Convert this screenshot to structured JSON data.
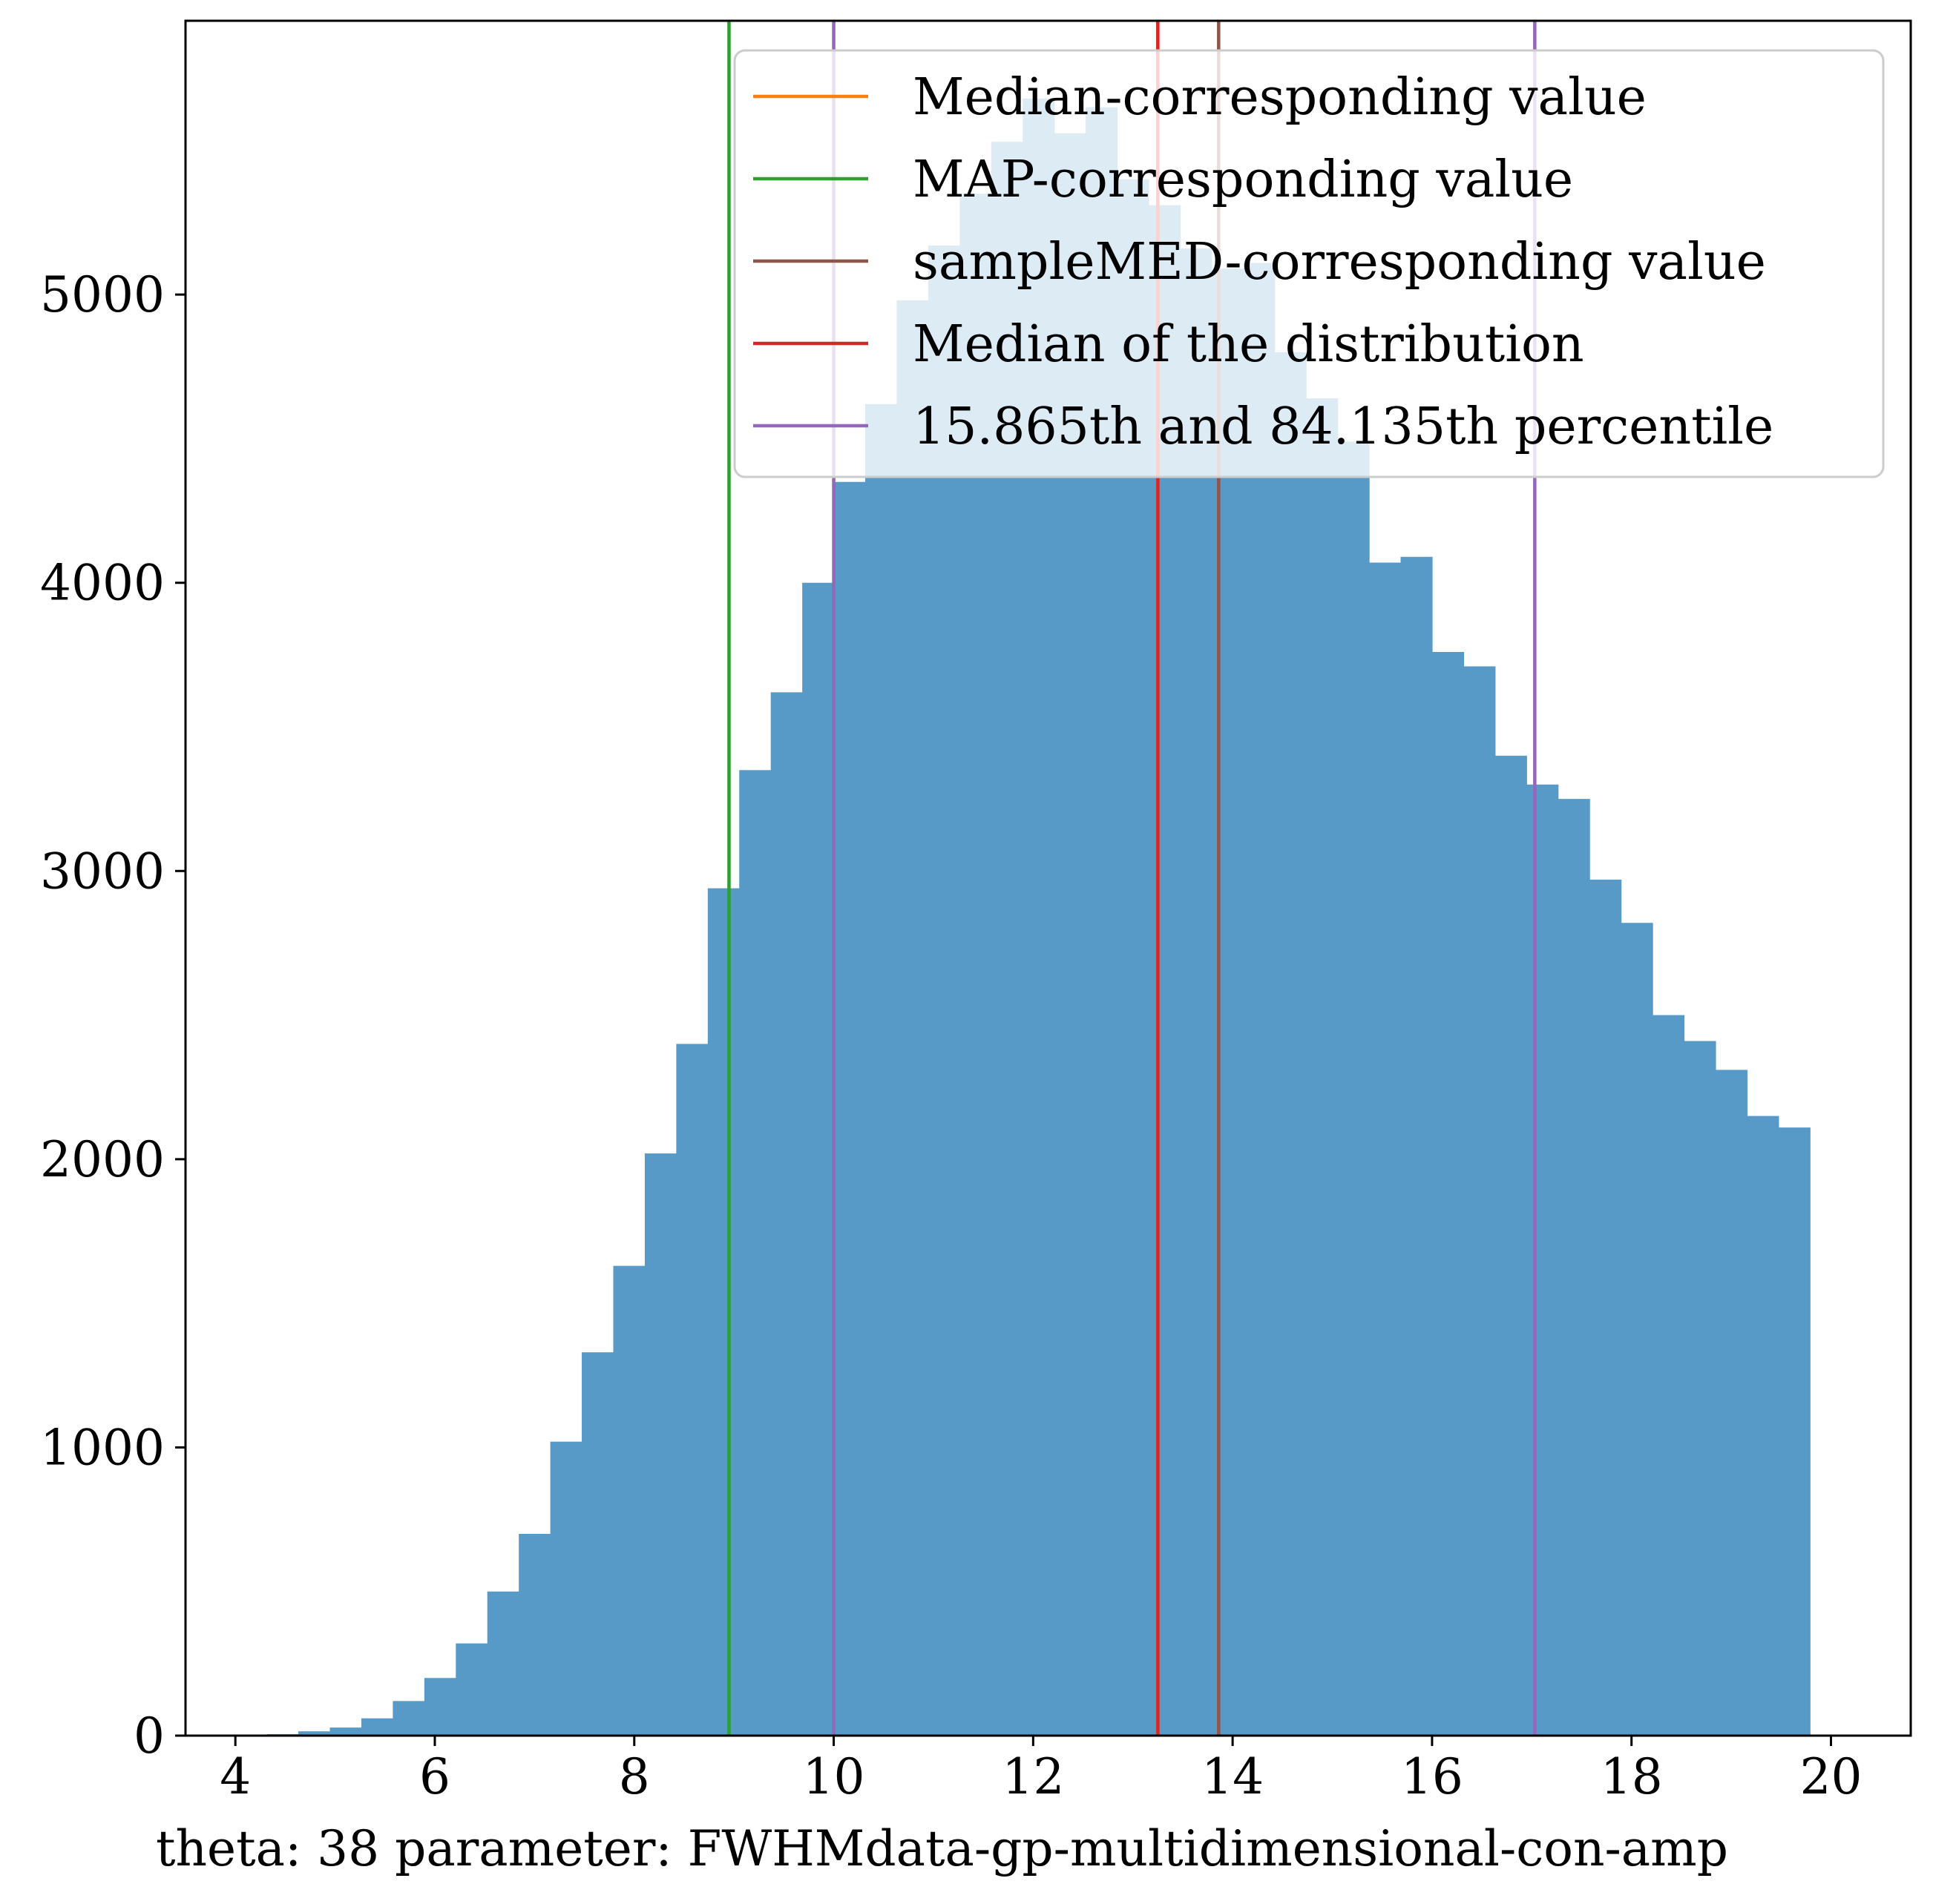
{
  "chart_data": {
    "type": "bar",
    "subtype": "histogram",
    "xlabel": "theta: 38 parameter: FWHMdata-gp-multidimensional-con-amp",
    "ylabel": "",
    "title": "",
    "xlim": [
      3.5,
      20.8
    ],
    "ylim": [
      0,
      5950
    ],
    "xticks": [
      4,
      6,
      8,
      10,
      12,
      14,
      16,
      18,
      20
    ],
    "yticks": [
      0,
      1000,
      2000,
      3000,
      4000,
      5000
    ],
    "xtick_labels": [
      "4",
      "6",
      "8",
      "10",
      "12",
      "14",
      "16",
      "18",
      "20"
    ],
    "ytick_labels": [
      "0",
      "1000",
      "2000",
      "3000",
      "4000",
      "5000"
    ],
    "bins": {
      "start": 4.0,
      "width": 0.3158,
      "counts": [
        2,
        5,
        15,
        28,
        60,
        120,
        200,
        320,
        500,
        700,
        1020,
        1330,
        1630,
        2020,
        2400,
        2940,
        3350,
        3620,
        4000,
        4350,
        4620,
        4980,
        5170,
        5350,
        5530,
        5680,
        5560,
        5650,
        5400,
        5310,
        5160,
        5090,
        5110,
        4800,
        4640,
        4490,
        4070,
        4090,
        3760,
        3710,
        3400,
        3300,
        3250,
        2970,
        2820,
        2500,
        2410,
        2310,
        2150,
        2110
      ]
    },
    "bar_color": "#5799c7",
    "vlines": [
      {
        "name": "Median-corresponding value",
        "x": 13.25,
        "color": "#ff7f0e"
      },
      {
        "name": "MAP-corresponding value",
        "x": 8.95,
        "color": "#2ca02c"
      },
      {
        "name": "sampleMED-corresponding value",
        "x": 13.86,
        "color": "#8c564b"
      },
      {
        "name": "Median of the distribution",
        "x": 13.25,
        "color": "#d62728"
      },
      {
        "name": "15.865th and 84.135th percentile",
        "x": [
          10.0,
          17.03
        ],
        "color": "#9467bd"
      }
    ],
    "legend": {
      "position": "upper right",
      "entries": [
        "Median-corresponding value",
        "MAP-corresponding value",
        "sampleMED-corresponding value",
        "Median of the distribution",
        "15.865th and 84.135th percentile"
      ]
    },
    "grid": false
  }
}
